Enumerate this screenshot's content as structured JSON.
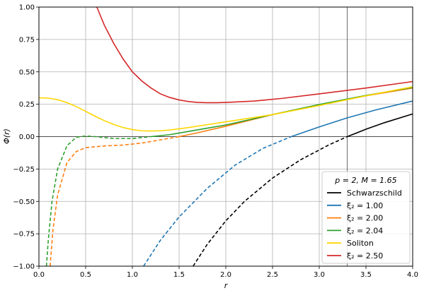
{
  "chart_data": {
    "type": "line",
    "xlabel": "r",
    "ylabel": "Φ(r)",
    "xlim": [
      0.0,
      4.0
    ],
    "ylim": [
      -1.0,
      1.0
    ],
    "grid": true,
    "xticks": [
      "0.0",
      "0.5",
      "1.0",
      "1.5",
      "2.0",
      "2.5",
      "3.0",
      "3.5",
      "4.0"
    ],
    "yticks": [
      "−1.00",
      "−0.75",
      "−0.50",
      "−0.25",
      "0.00",
      "0.25",
      "0.50",
      "0.75",
      "1.00"
    ],
    "reference_lines": {
      "horizontal_y": 0.0,
      "vertical_x": 3.3
    },
    "legend": {
      "title": "p = 2, M = 1.65",
      "placement": "lower-right",
      "entries": [
        "Schwarzschild",
        "ξ₂ = 1.00",
        "ξ₂ = 2.00",
        "ξ₂ = 2.04",
        "Soliton",
        "ξ₂ = 2.50"
      ]
    },
    "series": [
      {
        "name": "Schwarzschild",
        "color": "#000000",
        "dashed_x": [
          1.65,
          1.8,
          2.0,
          2.2,
          2.5,
          2.8,
          3.1,
          3.3
        ],
        "dashed_y": [
          -1.0,
          -0.833,
          -0.65,
          -0.5,
          -0.32,
          -0.179,
          -0.065,
          0.0
        ],
        "solid_x": [
          3.3,
          3.5,
          3.7,
          4.0
        ],
        "solid_y": [
          0.0,
          0.057,
          0.108,
          0.175
        ]
      },
      {
        "name": "ξ₂ = 1.00",
        "color": "#1f77b4",
        "dashed_x": [
          1.12,
          1.3,
          1.5,
          1.8,
          2.1,
          2.4,
          2.7
        ],
        "dashed_y": [
          -1.0,
          -0.8,
          -0.62,
          -0.4,
          -0.22,
          -0.09,
          0.0
        ],
        "solid_x": [
          2.7,
          3.0,
          3.3,
          3.6,
          4.0
        ],
        "solid_y": [
          0.0,
          0.075,
          0.145,
          0.205,
          0.275
        ]
      },
      {
        "name": "ξ₂ = 2.00",
        "color": "#ff7f0e",
        "dashed_x": [
          0.12,
          0.15,
          0.2,
          0.3,
          0.4,
          0.5,
          0.7,
          0.9,
          1.1,
          1.3,
          1.5
        ],
        "dashed_y": [
          -1.0,
          -0.72,
          -0.45,
          -0.2,
          -0.115,
          -0.085,
          -0.072,
          -0.065,
          -0.05,
          -0.025,
          0.0
        ],
        "solid_x": [
          1.5,
          1.7,
          2.0,
          2.5,
          3.0,
          3.5,
          4.0
        ],
        "solid_y": [
          0.0,
          0.03,
          0.08,
          0.17,
          0.245,
          0.315,
          0.375
        ]
      },
      {
        "name": "ξ₂ = 2.04",
        "color": "#2ca02c",
        "dashed_x": [
          0.08,
          0.1,
          0.14,
          0.2,
          0.3,
          0.4,
          0.5,
          0.6,
          0.8,
          1.0,
          1.2
        ],
        "dashed_y": [
          -1.0,
          -0.8,
          -0.5,
          -0.25,
          -0.07,
          -0.005,
          0.005,
          0.0,
          -0.015,
          -0.015,
          0.0
        ],
        "solid_x": [
          1.2,
          1.4,
          1.6,
          1.8,
          2.0,
          2.5,
          3.0,
          3.5,
          4.0
        ],
        "solid_y": [
          0.0,
          0.015,
          0.04,
          0.065,
          0.09,
          0.17,
          0.248,
          0.318,
          0.38
        ]
      },
      {
        "name": "Soliton",
        "color": "#ffd600",
        "solid_x": [
          0.0,
          0.1,
          0.2,
          0.3,
          0.4,
          0.5,
          0.6,
          0.7,
          0.8,
          0.9,
          1.0,
          1.1,
          1.2,
          1.3,
          1.4,
          1.6,
          1.8,
          2.0,
          2.5,
          3.0,
          3.5,
          4.0
        ],
        "solid_y": [
          0.3,
          0.297,
          0.285,
          0.262,
          0.232,
          0.195,
          0.158,
          0.123,
          0.094,
          0.07,
          0.054,
          0.045,
          0.043,
          0.045,
          0.051,
          0.07,
          0.092,
          0.114,
          0.17,
          0.24,
          0.315,
          0.385
        ]
      },
      {
        "name": "ξ₂ = 2.50",
        "color": "#d62728",
        "solid_x": [
          0.62,
          0.7,
          0.8,
          0.9,
          1.0,
          1.1,
          1.2,
          1.3,
          1.4,
          1.5,
          1.6,
          1.7,
          1.8,
          1.9,
          2.0,
          2.3,
          2.6,
          3.0,
          3.5,
          4.0
        ],
        "solid_y": [
          1.0,
          0.86,
          0.72,
          0.6,
          0.5,
          0.43,
          0.375,
          0.33,
          0.302,
          0.283,
          0.271,
          0.264,
          0.262,
          0.262,
          0.264,
          0.274,
          0.295,
          0.33,
          0.375,
          0.425
        ]
      }
    ]
  }
}
